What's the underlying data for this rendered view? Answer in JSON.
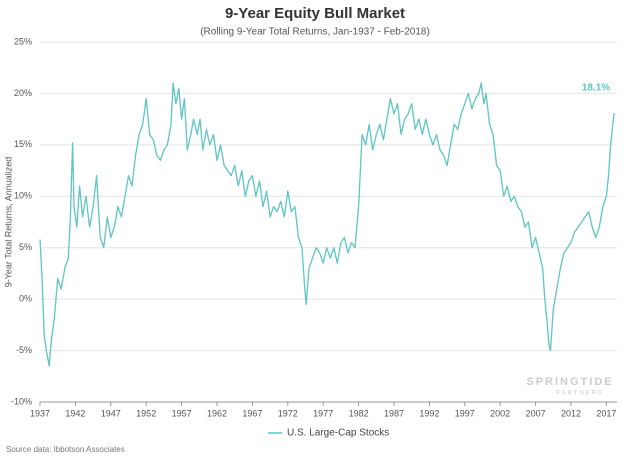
{
  "chart_data": {
    "type": "line",
    "title": "9-Year Equity Bull Market",
    "subtitle": "(Rolling 9-Year Total Returns, Jan-1937 - Feb-2018)",
    "y_label": "9-Year Total Returns, Annualized",
    "source": "Source data: Ibbotson Associates",
    "watermark": "SPRINGTIDE",
    "watermark_sub": "PARTNERS",
    "end_label": "18.1%",
    "grid": true,
    "xlim": [
      1937,
      2018.5
    ],
    "ylim": [
      -10,
      25
    ],
    "xticks": [
      1937,
      1942,
      1947,
      1952,
      1957,
      1962,
      1967,
      1972,
      1977,
      1982,
      1987,
      1992,
      1997,
      2002,
      2007,
      2012,
      2017
    ],
    "yticks": [
      {
        "value": -10,
        "label": "-10%"
      },
      {
        "value": -5,
        "label": "-5%"
      },
      {
        "value": 0,
        "label": "0%"
      },
      {
        "value": 5,
        "label": "5%"
      },
      {
        "value": 10,
        "label": "10%"
      },
      {
        "value": 15,
        "label": "15%"
      },
      {
        "value": 20,
        "label": "20%"
      },
      {
        "value": 25,
        "label": "25%"
      }
    ],
    "x": [
      1937.0,
      1937.3,
      1937.6,
      1937.9,
      1938.3,
      1938.6,
      1939,
      1939.5,
      1940,
      1940.5,
      1941,
      1941.3,
      1941.6,
      1941.8,
      1942.2,
      1942.6,
      1943,
      1943.5,
      1944,
      1944.5,
      1945,
      1945.5,
      1946,
      1946.5,
      1947,
      1947.5,
      1948,
      1948.5,
      1949,
      1949.5,
      1950,
      1950.5,
      1951,
      1951.5,
      1952,
      1952.5,
      1953,
      1953.5,
      1954,
      1954.5,
      1955,
      1955.5,
      1955.8,
      1956.2,
      1956.6,
      1957,
      1957.4,
      1957.8,
      1958.3,
      1958.7,
      1959.2,
      1959.6,
      1960,
      1960.5,
      1961,
      1961.5,
      1962,
      1962.5,
      1963,
      1963.5,
      1964,
      1964.5,
      1965,
      1965.5,
      1966,
      1966.5,
      1967,
      1967.5,
      1968,
      1968.5,
      1969,
      1969.5,
      1970,
      1970.5,
      1971,
      1971.5,
      1972,
      1972.5,
      1973,
      1973.5,
      1974,
      1974.4,
      1974.6,
      1975,
      1975.5,
      1976,
      1976.5,
      1977,
      1977.5,
      1978,
      1978.5,
      1979,
      1979.5,
      1980,
      1980.5,
      1981,
      1981.5,
      1982,
      1982.5,
      1983,
      1983.5,
      1984,
      1984.5,
      1985,
      1985.5,
      1986,
      1986.5,
      1987,
      1987.5,
      1988,
      1988.5,
      1989,
      1989.5,
      1990,
      1990.5,
      1991,
      1991.5,
      1992,
      1992.5,
      1993,
      1993.5,
      1994,
      1994.5,
      1995,
      1995.5,
      1996,
      1996.5,
      1997,
      1997.5,
      1998,
      1998.5,
      1999,
      1999.3,
      1999.7,
      2000,
      2000.5,
      2001,
      2001.5,
      2002,
      2002.5,
      2003,
      2003.5,
      2004,
      2004.5,
      2005,
      2005.5,
      2006,
      2006.5,
      2007,
      2007.5,
      2008,
      2008.3,
      2008.6,
      2008.9,
      2009.1,
      2009.5,
      2010,
      2010.5,
      2011,
      2011.5,
      2012,
      2012.5,
      2013,
      2013.5,
      2014,
      2014.5,
      2015,
      2015.5,
      2016,
      2016.5,
      2017,
      2017.3,
      2017.6,
      2017.9,
      2018.1
    ],
    "series": [
      {
        "name": "U.S. Large-Cap Stocks",
        "color": "#5ec4c4",
        "values": [
          5.8,
          2,
          -3.5,
          -5,
          -6.5,
          -4,
          -2,
          2,
          1,
          3,
          4,
          8,
          15.2,
          9,
          7,
          11,
          8,
          10,
          7,
          9,
          12,
          6,
          5,
          8,
          6,
          7,
          9,
          8,
          10,
          12,
          11,
          14,
          16,
          17,
          19.5,
          16,
          15.5,
          14,
          13.5,
          14.5,
          15,
          17,
          21,
          19,
          20.5,
          17.5,
          19.5,
          14.5,
          16,
          17.5,
          16,
          17.5,
          14.5,
          16.5,
          15,
          16,
          13.5,
          15,
          13,
          12.5,
          12,
          13,
          11,
          12.5,
          10,
          11.5,
          12,
          10,
          11.5,
          9,
          10.5,
          8,
          9,
          8.5,
          9.5,
          8,
          10.5,
          8.5,
          9,
          6,
          5,
          1,
          -0.5,
          3,
          4,
          5,
          4.5,
          3.5,
          5,
          4,
          5,
          3.5,
          5.5,
          6,
          4.5,
          5.5,
          5,
          9,
          16,
          15,
          17,
          14.5,
          16,
          17,
          15.5,
          17.5,
          19.5,
          18,
          19,
          16,
          17.5,
          18,
          19,
          16.5,
          17.5,
          16,
          17.5,
          16,
          15,
          16,
          14.5,
          14,
          13,
          15,
          17,
          16.5,
          18,
          19,
          20,
          18.5,
          19.5,
          20,
          21,
          19,
          20,
          17,
          16,
          13,
          12.5,
          10,
          11,
          9.5,
          10,
          9,
          8.5,
          7,
          7.5,
          5,
          6,
          4.5,
          3,
          0,
          -2,
          -4.5,
          -5,
          -1,
          1,
          3,
          4.5,
          5,
          5.5,
          6.5,
          7,
          7.5,
          8,
          8.5,
          7,
          6,
          7,
          9,
          10,
          12,
          15,
          17,
          18.1
        ]
      }
    ]
  }
}
